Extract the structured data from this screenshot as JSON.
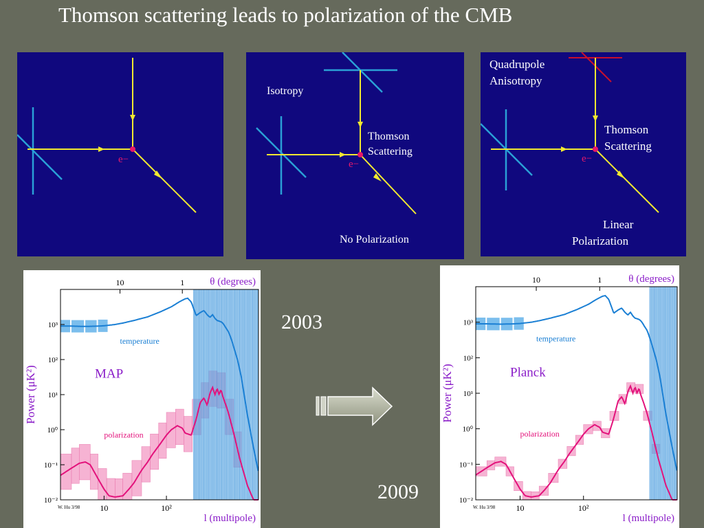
{
  "slide": {
    "title": "Thomson scattering leads to polarization of the CMB"
  },
  "panels": [
    {
      "electron_label": "e−"
    },
    {
      "electron_label": "e−",
      "isotropy": "Isotropy",
      "scatter_line1": "Thomson",
      "scatter_line2": "Scattering",
      "result": "No Polarization"
    },
    {
      "electron_label": "e−",
      "aniso_line1": "Quadrupole",
      "aniso_line2": "Anisotropy",
      "scatter_line1": "Thomson",
      "scatter_line2": "Scattering",
      "result_line1": "Linear",
      "result_line2": "Polarization"
    }
  ],
  "years": {
    "left": "2003",
    "right": "2009"
  },
  "colors": {
    "slide_bg": "#666a5c",
    "panel_bg": "#10087e",
    "ray": "#f2e930",
    "polar_bar": "#2aa0d6",
    "quadrupole": "#c8102e",
    "electron": "#e6196b",
    "temperature": "#1a7fd4",
    "polarization": "#e3127b",
    "label_purple": "#8a1cc8"
  },
  "chart_data": [
    {
      "type": "line",
      "experiment": "MAP",
      "year": "2003",
      "title_top": "θ (degrees)",
      "top_ticks": [
        "10",
        "1"
      ],
      "ylabel": "Power (μK²)",
      "xlabel": "l (multipole)",
      "credit": "W. Hu 3/98",
      "xscale": "log",
      "yscale": "log",
      "xlim": [
        2,
        3000
      ],
      "ylim": [
        0.01,
        10000
      ],
      "x_ticks": [
        "10",
        "10²"
      ],
      "y_ticks": [
        "10⁻²",
        "10⁻¹",
        "10⁰",
        "10¹",
        "10²",
        "10³"
      ],
      "series": [
        {
          "name": "temperature",
          "x": [
            2,
            3,
            5,
            8,
            10,
            15,
            20,
            30,
            50,
            80,
            120,
            160,
            200,
            220,
            250,
            300,
            350,
            400,
            450,
            500,
            550,
            600,
            650,
            700,
            750,
            800,
            850,
            900,
            1000,
            1100,
            1200,
            1400,
            1600,
            1800,
            2000,
            2500,
            3000
          ],
          "y": [
            900,
            900,
            880,
            900,
            920,
            1000,
            1100,
            1300,
            1650,
            2300,
            3200,
            4400,
            5400,
            5600,
            4400,
            1800,
            2200,
            2500,
            1900,
            1600,
            1900,
            1500,
            1300,
            1250,
            1200,
            1100,
            950,
            800,
            600,
            380,
            230,
            90,
            30,
            8,
            2.5,
            0.3,
            0.06
          ]
        },
        {
          "name": "polarization",
          "x": [
            2,
            3,
            4,
            5,
            6,
            8,
            10,
            12,
            15,
            20,
            25,
            30,
            40,
            50,
            60,
            80,
            100,
            120,
            150,
            180,
            200,
            250,
            300,
            350,
            400,
            450,
            500,
            550,
            600,
            650,
            700,
            750,
            800,
            900,
            1000,
            1200,
            1500,
            2000,
            2500,
            3000
          ],
          "y": [
            0.05,
            0.08,
            0.11,
            0.12,
            0.1,
            0.04,
            0.02,
            0.013,
            0.012,
            0.013,
            0.02,
            0.03,
            0.07,
            0.12,
            0.2,
            0.4,
            0.7,
            1.0,
            1.3,
            1.1,
            0.8,
            0.7,
            2,
            6,
            8,
            5,
            11,
            16,
            10,
            15,
            10,
            14,
            9,
            5,
            2.8,
            0.8,
            0.15,
            0.025,
            0.01,
            0.01
          ]
        }
      ]
    },
    {
      "type": "line",
      "experiment": "Planck",
      "year": "2009",
      "title_top": "θ (degrees)",
      "top_ticks": [
        "10",
        "1"
      ],
      "ylabel": "Power (μK²)",
      "xlabel": "l (multipole)",
      "credit": "W. Hu 3/98",
      "xscale": "log",
      "yscale": "log",
      "xlim": [
        2,
        3000
      ],
      "ylim": [
        0.01,
        10000
      ],
      "x_ticks": [
        "10",
        "10²"
      ],
      "y_ticks": [
        "10⁻²",
        "10⁻¹",
        "10⁰",
        "10¹",
        "10²",
        "10³"
      ],
      "series": [
        {
          "name": "temperature",
          "x": [
            2,
            3,
            5,
            8,
            10,
            15,
            20,
            30,
            50,
            80,
            120,
            160,
            200,
            220,
            250,
            300,
            350,
            400,
            450,
            500,
            550,
            600,
            650,
            700,
            750,
            800,
            850,
            900,
            1000,
            1100,
            1200,
            1400,
            1600,
            1800,
            2000,
            2500,
            3000
          ],
          "y": [
            900,
            900,
            880,
            900,
            920,
            1000,
            1100,
            1300,
            1650,
            2300,
            3200,
            4400,
            5400,
            5600,
            4400,
            1800,
            2200,
            2500,
            1900,
            1600,
            1900,
            1500,
            1300,
            1250,
            1200,
            1100,
            950,
            800,
            600,
            380,
            230,
            90,
            30,
            8,
            2.5,
            0.3,
            0.06
          ]
        },
        {
          "name": "polarization",
          "x": [
            2,
            3,
            4,
            5,
            6,
            8,
            10,
            12,
            15,
            20,
            25,
            30,
            40,
            50,
            60,
            80,
            100,
            120,
            150,
            180,
            200,
            250,
            300,
            350,
            400,
            450,
            500,
            550,
            600,
            650,
            700,
            750,
            800,
            900,
            1000,
            1200,
            1500,
            2000,
            2500,
            3000
          ],
          "y": [
            0.05,
            0.08,
            0.11,
            0.12,
            0.1,
            0.04,
            0.02,
            0.013,
            0.012,
            0.013,
            0.02,
            0.03,
            0.07,
            0.12,
            0.2,
            0.4,
            0.7,
            1.0,
            1.3,
            1.1,
            0.8,
            0.7,
            2,
            6,
            8,
            5,
            11,
            16,
            10,
            15,
            10,
            14,
            9,
            5,
            2.8,
            0.8,
            0.15,
            0.025,
            0.01,
            0.01
          ]
        }
      ]
    }
  ]
}
